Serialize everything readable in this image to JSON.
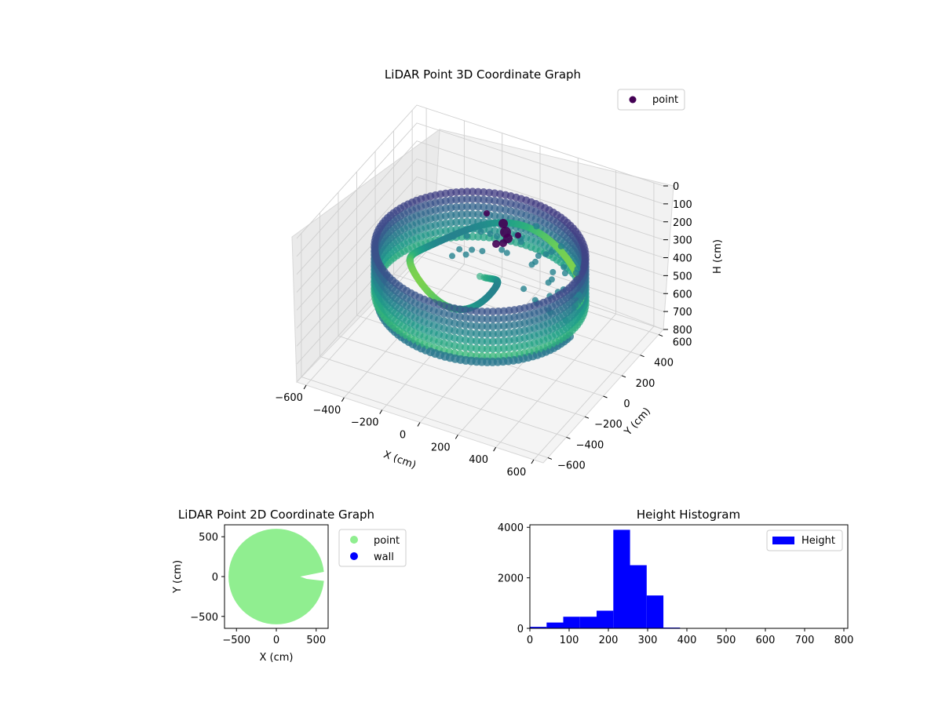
{
  "colors": {
    "background": "#ffffff",
    "point2d": "#90ee90",
    "wall": "#0000ff",
    "hist": "#0000ff",
    "legend_point3d": "#440154"
  },
  "chart_data": [
    {
      "type": "scatter",
      "projection": "3d",
      "title": "LiDAR Point 3D Coordinate Graph",
      "xlabel": "X (cm)",
      "ylabel": "Y (cm)",
      "zlabel": "H (cm)",
      "xlim": [
        -650,
        650
      ],
      "ylim": [
        -650,
        650
      ],
      "zlim": [
        0,
        800
      ],
      "z_inverted": true,
      "x_ticks": [
        -600,
        -400,
        -200,
        0,
        200,
        400,
        600
      ],
      "y_ticks": [
        -600,
        -400,
        -200,
        0,
        200,
        400,
        600
      ],
      "z_ticks": [
        0,
        100,
        200,
        300,
        400,
        500,
        600,
        700,
        800
      ],
      "colormap": "viridis",
      "legend": {
        "entries": [
          "point"
        ],
        "placement": "top-right"
      },
      "ring": {
        "radius": 500,
        "h_top": 220,
        "h_bottom": 470,
        "note": "dense circular wall of points"
      }
    },
    {
      "type": "scatter",
      "title": "LiDAR Point 2D Coordinate Graph",
      "xlabel": "X (cm)",
      "ylabel": "Y (cm)",
      "xlim": [
        -650,
        650
      ],
      "ylim": [
        -650,
        650
      ],
      "x_ticks": [
        -500,
        0,
        500
      ],
      "y_ticks": [
        -500,
        0,
        500
      ],
      "series": [
        {
          "name": "point",
          "shape": "filled disk",
          "radius": 600,
          "center": [
            0,
            0
          ],
          "gap_direction": "east"
        },
        {
          "name": "wall",
          "points": []
        }
      ],
      "legend": {
        "entries": [
          "point",
          "wall"
        ],
        "placement": "outside-right"
      }
    },
    {
      "type": "bar",
      "subtype": "histogram",
      "title": "Height Histogram",
      "xlim": [
        0,
        810
      ],
      "ylim": [
        0,
        4100
      ],
      "x_ticks": [
        0,
        100,
        200,
        300,
        400,
        500,
        600,
        700,
        800
      ],
      "y_ticks": [
        0,
        2000,
        4000
      ],
      "bin_edges": [
        0,
        42.5,
        85,
        127.5,
        170,
        212.5,
        255,
        297.5,
        340,
        382.5,
        425,
        467.5,
        510,
        552.5,
        595,
        637.5,
        680,
        722.5,
        765,
        807.5
      ],
      "values": [
        60,
        230,
        460,
        460,
        700,
        3900,
        2500,
        1300,
        30,
        5,
        5,
        5,
        5,
        5,
        5,
        5,
        5,
        5,
        5
      ],
      "series_name": "Height",
      "legend": {
        "entries": [
          "Height"
        ],
        "placement": "top-right"
      }
    }
  ]
}
